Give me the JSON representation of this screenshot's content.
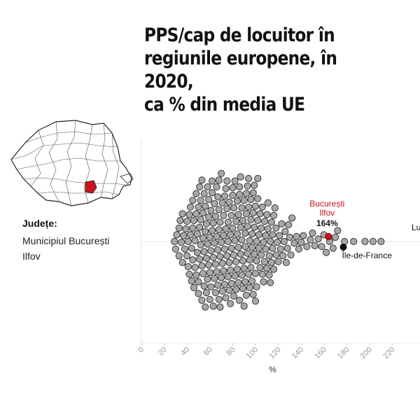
{
  "title_lines": [
    "PPS/cap de locuitor în",
    "regiunile europene, în 2020,",
    "ca % din media UE"
  ],
  "legend": {
    "label": "Județe:",
    "items": [
      "Municipiul București",
      "Ilfov"
    ]
  },
  "colors": {
    "highlight": "#c8141e",
    "point_fill": "#a8a8a8",
    "point_stroke": "#3a3a3a",
    "reference": "#111111"
  },
  "chart_data": {
    "type": "scatter",
    "style": "beeswarm",
    "title": "PPS/cap de locuitor în regiunile europene, în 2020, ca % din media UE",
    "xlabel": "%",
    "ylabel": "",
    "xlim": [
      0,
      230
    ],
    "x_ticks": [
      0,
      20,
      40,
      60,
      80,
      100,
      120,
      140,
      160,
      180,
      200,
      220
    ],
    "grid": "x major",
    "values": [
      29,
      30,
      31,
      33,
      33,
      34,
      35,
      36,
      36,
      37,
      38,
      39,
      40,
      40,
      41,
      41,
      42,
      42,
      43,
      43,
      44,
      44,
      45,
      45,
      45,
      46,
      46,
      47,
      47,
      48,
      48,
      48,
      49,
      49,
      50,
      50,
      50,
      51,
      51,
      51,
      52,
      52,
      52,
      53,
      53,
      53,
      54,
      54,
      54,
      55,
      55,
      55,
      56,
      56,
      56,
      57,
      57,
      57,
      58,
      58,
      58,
      59,
      59,
      59,
      60,
      60,
      60,
      61,
      61,
      61,
      62,
      62,
      62,
      63,
      63,
      63,
      64,
      64,
      64,
      65,
      65,
      65,
      66,
      66,
      66,
      67,
      67,
      67,
      68,
      68,
      68,
      68,
      69,
      69,
      69,
      70,
      70,
      70,
      71,
      71,
      71,
      72,
      72,
      72,
      73,
      73,
      73,
      74,
      74,
      74,
      75,
      75,
      75,
      76,
      76,
      76,
      77,
      77,
      77,
      78,
      78,
      78,
      79,
      79,
      79,
      80,
      80,
      80,
      81,
      81,
      81,
      82,
      82,
      82,
      83,
      83,
      83,
      84,
      84,
      84,
      85,
      85,
      85,
      86,
      86,
      86,
      87,
      87,
      87,
      88,
      88,
      88,
      89,
      89,
      89,
      90,
      90,
      90,
      91,
      91,
      91,
      92,
      92,
      92,
      93,
      93,
      93,
      94,
      94,
      94,
      95,
      95,
      95,
      96,
      96,
      96,
      97,
      97,
      97,
      98,
      98,
      98,
      99,
      99,
      99,
      100,
      100,
      100,
      101,
      101,
      101,
      102,
      102,
      102,
      103,
      103,
      104,
      104,
      105,
      105,
      106,
      106,
      107,
      107,
      108,
      108,
      109,
      109,
      110,
      110,
      111,
      111,
      112,
      112,
      113,
      113,
      114,
      114,
      115,
      115,
      116,
      116,
      117,
      118,
      118,
      119,
      120,
      121,
      122,
      123,
      124,
      125,
      126,
      127,
      128,
      129,
      130,
      131,
      132,
      134,
      136,
      138,
      140,
      142,
      145,
      148,
      150,
      152,
      155,
      158,
      160,
      162,
      165,
      168,
      170,
      172,
      178,
      186,
      196,
      203,
      210
    ],
    "highlight": {
      "name": "București\nIlfov",
      "value": 164
    },
    "annotations": [
      {
        "label": "București",
        "value": 164,
        "color": "#c8141e"
      },
      {
        "label": "Ilfov",
        "value": 164,
        "color": "#c8141e"
      },
      {
        "label": "164%",
        "value": 164
      },
      {
        "label": "Île-de-France",
        "value": 177
      },
      {
        "label": "Lu",
        "value": 261
      }
    ]
  }
}
